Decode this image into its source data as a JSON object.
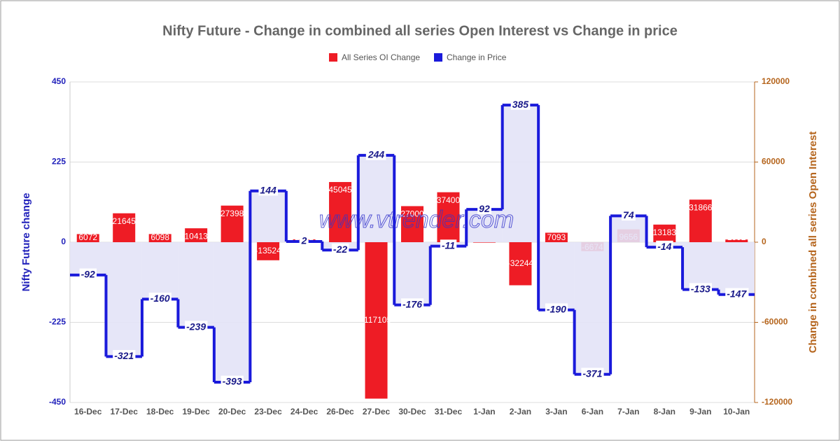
{
  "chart_data": {
    "type": "bar_step",
    "title": "Nifty Future - Change in combined all series Open Interest vs Change in price",
    "watermark": "www.vtrender.com",
    "y_label": "Nifty Future change",
    "y2_label": "Change in combined all series Open Interest",
    "categories": [
      "16-Dec",
      "17-Dec",
      "18-Dec",
      "19-Dec",
      "20-Dec",
      "23-Dec",
      "24-Dec",
      "26-Dec",
      "27-Dec",
      "30-Dec",
      "31-Dec",
      "1-Jan",
      "2-Jan",
      "3-Jan",
      "6-Jan",
      "7-Jan",
      "8-Jan",
      "9-Jan",
      "10-Jan"
    ],
    "series": [
      {
        "name": "All Series OI Change",
        "color": "#ee1c25",
        "axis": "y2",
        "kind": "bar",
        "values": [
          6072,
          21645,
          6098,
          10413,
          27398,
          -13524,
          2102,
          45045,
          -117105,
          27000,
          37400,
          -339,
          -32244,
          7093,
          -6674,
          9656,
          13183,
          31866,
          1992
        ]
      },
      {
        "name": "Change in Price",
        "color": "#1a1adb",
        "kind": "step",
        "values": [
          -92,
          -321,
          -160,
          -239,
          -393,
          144,
          2,
          -22,
          244,
          -176,
          -11,
          92,
          385,
          -190,
          -371,
          74,
          -14,
          -133,
          -147
        ]
      }
    ],
    "ylim": [
      -450,
      450
    ],
    "yticks": [
      -450,
      -225,
      0,
      225,
      450
    ],
    "y2lim": [
      -120000,
      120000
    ],
    "y2ticks": [
      -120000,
      -60000,
      0,
      60000,
      120000
    ],
    "y_color": "#2222bb",
    "y2_color": "#b5651d",
    "area_color": "#e3e3f7",
    "grid": true
  }
}
